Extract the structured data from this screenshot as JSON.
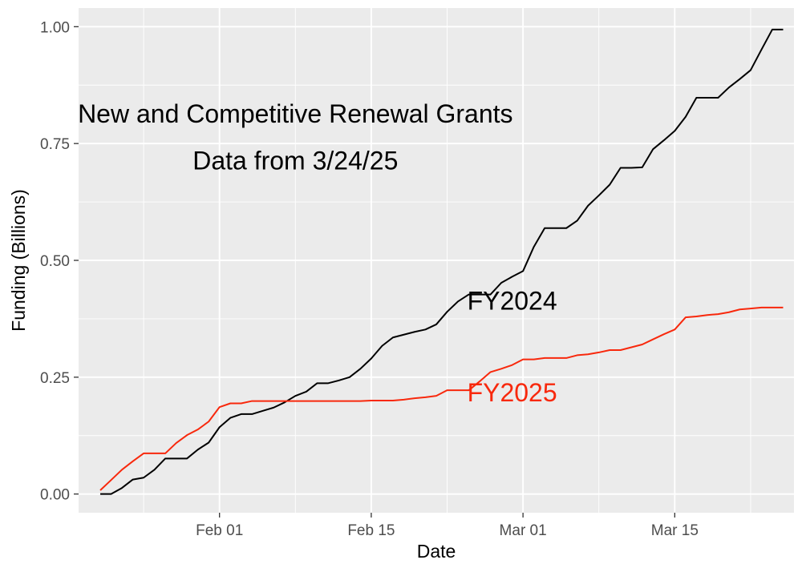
{
  "chart_data": {
    "type": "line",
    "title": "",
    "xlabel": "Date",
    "ylabel": "Funding (Billions)",
    "xlim": [
      "2025-01-19",
      "2025-03-26"
    ],
    "ylim": [
      -0.04,
      1.04
    ],
    "x_ticks": [
      {
        "date": "2025-02-01",
        "label": "Feb 01"
      },
      {
        "date": "2025-02-15",
        "label": "Feb 15"
      },
      {
        "date": "2025-03-01",
        "label": "Mar 01"
      },
      {
        "date": "2025-03-15",
        "label": "Mar 15"
      }
    ],
    "y_ticks": [
      {
        "value": 0.0,
        "label": "0.00"
      },
      {
        "value": 0.25,
        "label": "0.25"
      },
      {
        "value": 0.5,
        "label": "0.50"
      },
      {
        "value": 0.75,
        "label": "0.75"
      },
      {
        "value": 1.0,
        "label": "1.00"
      }
    ],
    "grid": true,
    "legend": "none",
    "annotations": [
      {
        "text": "New and Competitive Renewal Grants",
        "date": "2025-02-08",
        "y": 0.795,
        "color": "#000000"
      },
      {
        "text": "Data from 3/24/25",
        "date": "2025-02-08",
        "y": 0.695,
        "color": "#000000"
      },
      {
        "text": "FY2024",
        "date": "2025-02-28",
        "y": 0.395,
        "color": "#000000"
      },
      {
        "text": "FY2025",
        "date": "2025-02-28",
        "y": 0.198,
        "color": "#f8280c"
      }
    ],
    "series": [
      {
        "color": "#000000",
        "points": [
          [
            "2025-01-21",
            0.0
          ],
          [
            "2025-01-22",
            0.0
          ],
          [
            "2025-01-23",
            0.013
          ],
          [
            "2025-01-24",
            0.031
          ],
          [
            "2025-01-25",
            0.035
          ],
          [
            "2025-01-26",
            0.052
          ],
          [
            "2025-01-27",
            0.076
          ],
          [
            "2025-01-28",
            0.076
          ],
          [
            "2025-01-29",
            0.076
          ],
          [
            "2025-01-30",
            0.095
          ],
          [
            "2025-01-31",
            0.11
          ],
          [
            "2025-02-01",
            0.143
          ],
          [
            "2025-02-02",
            0.163
          ],
          [
            "2025-02-03",
            0.171
          ],
          [
            "2025-02-04",
            0.171
          ],
          [
            "2025-02-05",
            0.178
          ],
          [
            "2025-02-06",
            0.185
          ],
          [
            "2025-02-07",
            0.196
          ],
          [
            "2025-02-08",
            0.21
          ],
          [
            "2025-02-09",
            0.219
          ],
          [
            "2025-02-10",
            0.237
          ],
          [
            "2025-02-11",
            0.237
          ],
          [
            "2025-02-12",
            0.243
          ],
          [
            "2025-02-13",
            0.25
          ],
          [
            "2025-02-14",
            0.268
          ],
          [
            "2025-02-15",
            0.29
          ],
          [
            "2025-02-16",
            0.317
          ],
          [
            "2025-02-17",
            0.335
          ],
          [
            "2025-02-18",
            0.341
          ],
          [
            "2025-02-19",
            0.347
          ],
          [
            "2025-02-20",
            0.352
          ],
          [
            "2025-02-21",
            0.363
          ],
          [
            "2025-02-22",
            0.39
          ],
          [
            "2025-02-23",
            0.412
          ],
          [
            "2025-02-24",
            0.427
          ],
          [
            "2025-02-25",
            0.427
          ],
          [
            "2025-02-26",
            0.427
          ],
          [
            "2025-02-27",
            0.452
          ],
          [
            "2025-02-28",
            0.465
          ],
          [
            "2025-03-01",
            0.477
          ],
          [
            "2025-03-02",
            0.529
          ],
          [
            "2025-03-03",
            0.569
          ],
          [
            "2025-03-04",
            0.569
          ],
          [
            "2025-03-05",
            0.569
          ],
          [
            "2025-03-06",
            0.585
          ],
          [
            "2025-03-07",
            0.617
          ],
          [
            "2025-03-08",
            0.639
          ],
          [
            "2025-03-09",
            0.662
          ],
          [
            "2025-03-10",
            0.698
          ],
          [
            "2025-03-11",
            0.698
          ],
          [
            "2025-03-12",
            0.699
          ],
          [
            "2025-03-13",
            0.738
          ],
          [
            "2025-03-14",
            0.757
          ],
          [
            "2025-03-15",
            0.777
          ],
          [
            "2025-03-16",
            0.807
          ],
          [
            "2025-03-17",
            0.848
          ],
          [
            "2025-03-18",
            0.848
          ],
          [
            "2025-03-19",
            0.848
          ],
          [
            "2025-03-20",
            0.87
          ],
          [
            "2025-03-21",
            0.888
          ],
          [
            "2025-03-22",
            0.907
          ],
          [
            "2025-03-23",
            0.951
          ],
          [
            "2025-03-24",
            0.994
          ],
          [
            "2025-03-25",
            0.994
          ]
        ]
      },
      {
        "color": "#f8280c",
        "points": [
          [
            "2025-01-21",
            0.008
          ],
          [
            "2025-01-22",
            0.03
          ],
          [
            "2025-01-23",
            0.052
          ],
          [
            "2025-01-24",
            0.07
          ],
          [
            "2025-01-25",
            0.087
          ],
          [
            "2025-01-26",
            0.087
          ],
          [
            "2025-01-27",
            0.087
          ],
          [
            "2025-01-28",
            0.109
          ],
          [
            "2025-01-29",
            0.126
          ],
          [
            "2025-01-30",
            0.138
          ],
          [
            "2025-01-31",
            0.155
          ],
          [
            "2025-02-01",
            0.186
          ],
          [
            "2025-02-02",
            0.194
          ],
          [
            "2025-02-03",
            0.194
          ],
          [
            "2025-02-04",
            0.199
          ],
          [
            "2025-02-05",
            0.199
          ],
          [
            "2025-02-06",
            0.199
          ],
          [
            "2025-02-07",
            0.199
          ],
          [
            "2025-02-08",
            0.199
          ],
          [
            "2025-02-09",
            0.199
          ],
          [
            "2025-02-10",
            0.199
          ],
          [
            "2025-02-11",
            0.199
          ],
          [
            "2025-02-12",
            0.199
          ],
          [
            "2025-02-13",
            0.199
          ],
          [
            "2025-02-14",
            0.199
          ],
          [
            "2025-02-15",
            0.2
          ],
          [
            "2025-02-16",
            0.2
          ],
          [
            "2025-02-17",
            0.2
          ],
          [
            "2025-02-18",
            0.202
          ],
          [
            "2025-02-19",
            0.205
          ],
          [
            "2025-02-20",
            0.207
          ],
          [
            "2025-02-21",
            0.21
          ],
          [
            "2025-02-22",
            0.222
          ],
          [
            "2025-02-23",
            0.222
          ],
          [
            "2025-02-24",
            0.222
          ],
          [
            "2025-02-25",
            0.241
          ],
          [
            "2025-02-26",
            0.261
          ],
          [
            "2025-02-27",
            0.268
          ],
          [
            "2025-02-28",
            0.276
          ],
          [
            "2025-03-01",
            0.288
          ],
          [
            "2025-03-02",
            0.288
          ],
          [
            "2025-03-03",
            0.291
          ],
          [
            "2025-03-04",
            0.291
          ],
          [
            "2025-03-05",
            0.291
          ],
          [
            "2025-03-06",
            0.297
          ],
          [
            "2025-03-07",
            0.299
          ],
          [
            "2025-03-08",
            0.303
          ],
          [
            "2025-03-09",
            0.308
          ],
          [
            "2025-03-10",
            0.308
          ],
          [
            "2025-03-11",
            0.314
          ],
          [
            "2025-03-12",
            0.32
          ],
          [
            "2025-03-13",
            0.331
          ],
          [
            "2025-03-14",
            0.342
          ],
          [
            "2025-03-15",
            0.352
          ],
          [
            "2025-03-16",
            0.378
          ],
          [
            "2025-03-17",
            0.38
          ],
          [
            "2025-03-18",
            0.383
          ],
          [
            "2025-03-19",
            0.385
          ],
          [
            "2025-03-20",
            0.389
          ],
          [
            "2025-03-21",
            0.395
          ],
          [
            "2025-03-22",
            0.397
          ],
          [
            "2025-03-23",
            0.399
          ],
          [
            "2025-03-24",
            0.399
          ],
          [
            "2025-03-25",
            0.399
          ]
        ]
      }
    ]
  }
}
